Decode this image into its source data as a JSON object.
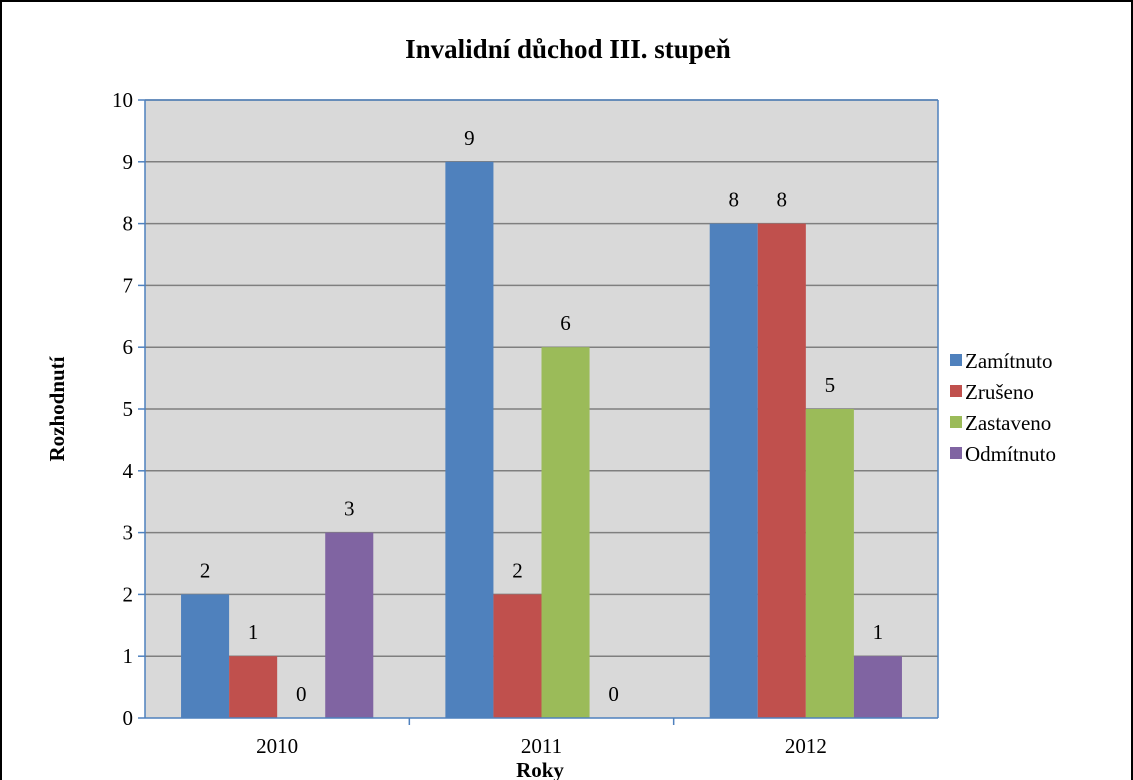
{
  "chart_data": {
    "type": "bar",
    "title": "Invalidní důchod III. stupeň",
    "xlabel": "Roky",
    "ylabel": "Rozhodnutí",
    "ylim": [
      0,
      10
    ],
    "yticks": [
      "0",
      "1",
      "2",
      "3",
      "4",
      "5",
      "6",
      "7",
      "8",
      "9",
      "10"
    ],
    "categories": [
      "2010",
      "2011",
      "2012"
    ],
    "series": [
      {
        "name": "Zamítnuto",
        "color": "#4F81BD",
        "values": [
          2,
          9,
          8
        ]
      },
      {
        "name": "Zrušeno",
        "color": "#C0504D",
        "values": [
          1,
          2,
          8
        ]
      },
      {
        "name": "Zastaveno",
        "color": "#9BBB59",
        "values": [
          0,
          6,
          5
        ]
      },
      {
        "name": "Odmítnuto",
        "color": "#8064A2",
        "values": [
          3,
          0,
          1
        ]
      }
    ],
    "grid": true,
    "legend_position": "right",
    "plot_background": "#D9D9D9",
    "axis_color": "#4F81BD",
    "grid_color": "#7F7F7F"
  }
}
